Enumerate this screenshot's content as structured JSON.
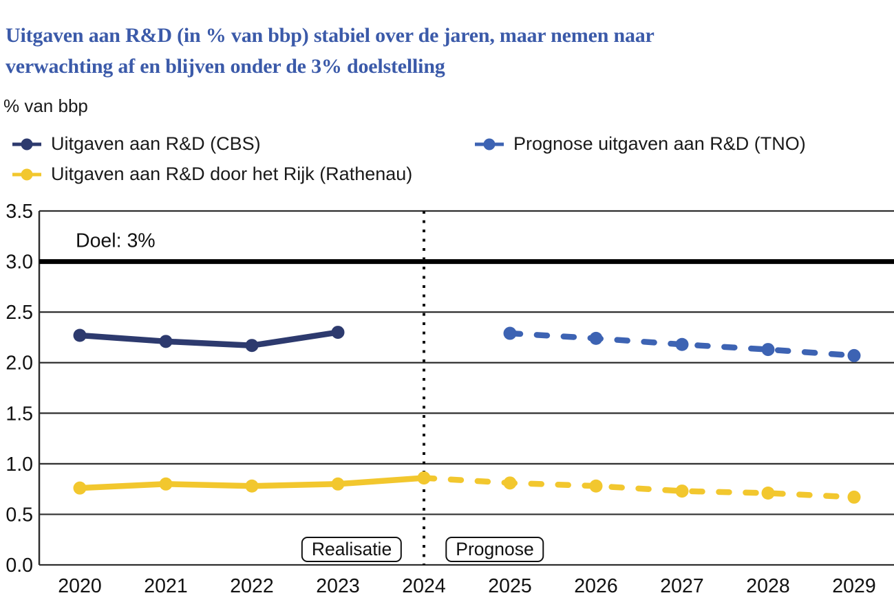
{
  "title": {
    "lines": [
      "Uitgaven aan R&D (in % van bbp) stabiel over de jaren, maar nemen naar",
      "verwachting af en blijven onder de 3% doelstelling"
    ],
    "color": "#3b5aa9"
  },
  "unit_label": "% van bbp",
  "legend": {
    "items": [
      {
        "label": "Uitgaven aan R&D (CBS)",
        "color": "#2d3a6e",
        "line": "solid"
      },
      {
        "label": "Prognose uitgaven aan R&D (TNO)",
        "color": "#3d63b3",
        "line": "dashed"
      },
      {
        "label": "Uitgaven aan R&D door het Rijk (Rathenau)",
        "color": "#f2c72e",
        "line": "solid"
      }
    ]
  },
  "chart_data": {
    "type": "line",
    "title": "Uitgaven aan R&D (in % van bbp) stabiel over de jaren, maar nemen naar verwachting af en blijven onder de 3% doelstelling",
    "ylabel": "% van bbp",
    "xlabel": "",
    "ylim": [
      0,
      3.5
    ],
    "grid": "horizontal",
    "legend_position": "top",
    "yticks": [
      {
        "value": 0.0,
        "label": "0.0"
      },
      {
        "value": 0.5,
        "label": "0.5"
      },
      {
        "value": 1.0,
        "label": "1.0"
      },
      {
        "value": 1.5,
        "label": "1.5"
      },
      {
        "value": 2.0,
        "label": "2.0"
      },
      {
        "value": 2.5,
        "label": "2.5"
      },
      {
        "value": 3.0,
        "label": "3.0"
      },
      {
        "value": 3.5,
        "label": "3.5"
      }
    ],
    "xticks": [
      {
        "value": 2020,
        "label": "2020"
      },
      {
        "value": 2021,
        "label": "2021"
      },
      {
        "value": 2022,
        "label": "2022"
      },
      {
        "value": 2023,
        "label": "2023"
      },
      {
        "value": 2024,
        "label": "2024"
      },
      {
        "value": 2025,
        "label": "2025"
      },
      {
        "value": 2026,
        "label": "2026"
      },
      {
        "value": 2027,
        "label": "2027"
      },
      {
        "value": 2028,
        "label": "2028"
      },
      {
        "value": 2029,
        "label": "2029"
      }
    ],
    "goal_line": {
      "value": 3.0,
      "label": "Doel: 3%",
      "color": "#000000"
    },
    "divider": {
      "x": 2024,
      "style": "dotted",
      "left_label": "Realisatie",
      "right_label": "Prognose"
    },
    "series": [
      {
        "name": "Uitgaven aan R&D (CBS)",
        "color": "#2d3a6e",
        "line": "solid",
        "x": [
          2020,
          2021,
          2022,
          2023
        ],
        "y": [
          2.27,
          2.21,
          2.17,
          2.3
        ]
      },
      {
        "name": "Prognose uitgaven aan R&D (TNO)",
        "color": "#3d63b3",
        "line": "dashed",
        "x": [
          2025,
          2026,
          2027,
          2028,
          2029
        ],
        "y": [
          2.29,
          2.24,
          2.18,
          2.13,
          2.07
        ]
      },
      {
        "name": "Uitgaven aan R&D door het Rijk (Rathenau)",
        "color": "#f2c72e",
        "line": "solid",
        "x": [
          2020,
          2021,
          2022,
          2023,
          2024
        ],
        "y": [
          0.76,
          0.8,
          0.78,
          0.8,
          0.86
        ]
      },
      {
        "name": "Prognose uitgaven aan R&D door het Rijk (Rathenau)",
        "color": "#f2c72e",
        "line": "dashed",
        "x": [
          2024,
          2025,
          2026,
          2027,
          2028,
          2029
        ],
        "y": [
          0.86,
          0.81,
          0.78,
          0.73,
          0.71,
          0.67
        ]
      }
    ]
  }
}
